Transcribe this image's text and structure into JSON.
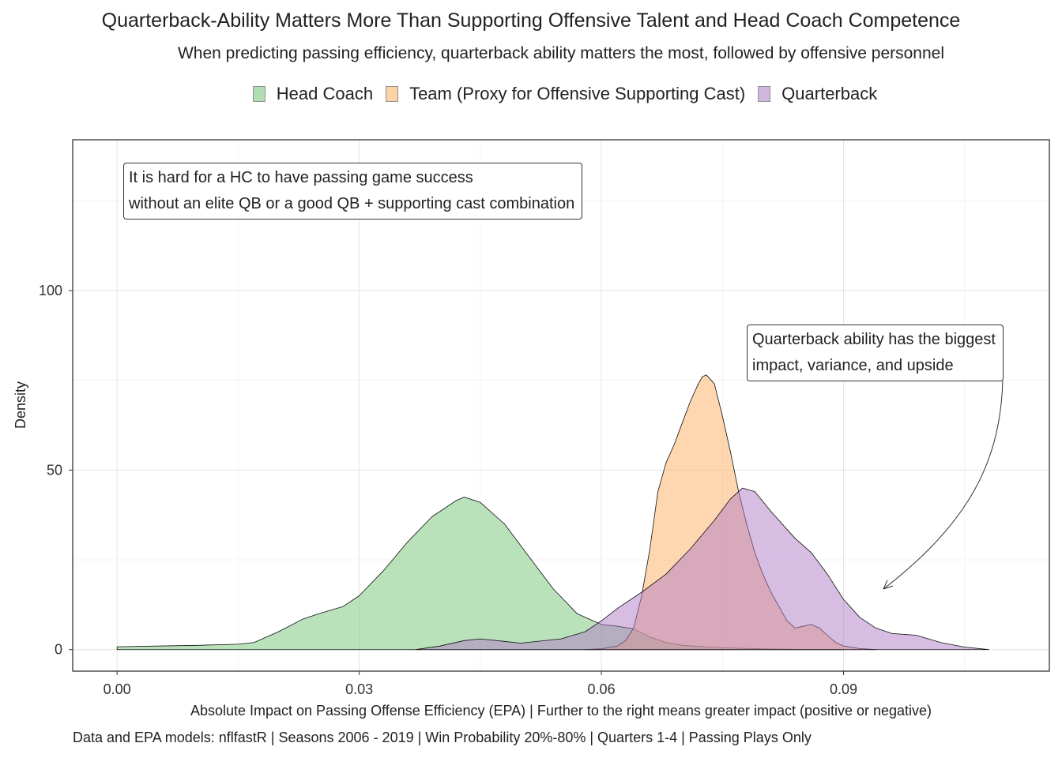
{
  "chart_data": {
    "type": "area",
    "title": "Quarterback-Ability Matters More Than Supporting Offensive Talent and Head Coach Competence",
    "subtitle": "When predicting passing efficiency, quarterback ability matters the most, followed by offensive personnel",
    "xlabel": "Absolute Impact on Passing Offense Efficiency (EPA) | Further to the right means greater impact (positive or negative)",
    "ylabel": "Density",
    "caption": "Data and EPA models: nflfastR | Seasons 2006 - 2019 | Win Probability 20%-80% | Quarters 1-4 | Passing Plays Only",
    "xlim": [
      -0.0055,
      0.1155
    ],
    "ylim": [
      -6,
      142
    ],
    "x_ticks": [
      0.0,
      0.03,
      0.06,
      0.09
    ],
    "x_tick_labels": [
      "0.00",
      "0.03",
      "0.06",
      "0.09"
    ],
    "y_ticks": [
      0,
      50,
      100
    ],
    "y_tick_labels": [
      "0",
      "50",
      "100"
    ],
    "grid": true,
    "legend_position": "top",
    "series": [
      {
        "name": "Head Coach",
        "color": "#74c476",
        "points": [
          [
            0.0,
            0.8
          ],
          [
            0.005,
            1
          ],
          [
            0.01,
            1.2
          ],
          [
            0.015,
            1.5
          ],
          [
            0.017,
            2
          ],
          [
            0.02,
            5
          ],
          [
            0.023,
            8.5
          ],
          [
            0.025,
            10
          ],
          [
            0.028,
            12
          ],
          [
            0.03,
            15
          ],
          [
            0.033,
            22
          ],
          [
            0.036,
            30
          ],
          [
            0.039,
            37
          ],
          [
            0.042,
            41.5
          ],
          [
            0.043,
            42.5
          ],
          [
            0.045,
            41
          ],
          [
            0.048,
            35
          ],
          [
            0.051,
            26
          ],
          [
            0.054,
            17
          ],
          [
            0.057,
            10
          ],
          [
            0.06,
            7
          ],
          [
            0.062,
            6.5
          ],
          [
            0.064,
            5.8
          ],
          [
            0.066,
            3.5
          ],
          [
            0.068,
            2
          ],
          [
            0.07,
            1.2
          ],
          [
            0.075,
            0.5
          ],
          [
            0.08,
            0.2
          ],
          [
            0.085,
            0.05
          ],
          [
            0.09,
            0
          ]
        ]
      },
      {
        "name": "Team (Proxy for Offensive Supporting Cast)",
        "color": "#fdae61",
        "points": [
          [
            0.058,
            0
          ],
          [
            0.06,
            0.2
          ],
          [
            0.062,
            1
          ],
          [
            0.063,
            2.5
          ],
          [
            0.064,
            6
          ],
          [
            0.065,
            15
          ],
          [
            0.066,
            28
          ],
          [
            0.067,
            44
          ],
          [
            0.068,
            52
          ],
          [
            0.069,
            57
          ],
          [
            0.07,
            63
          ],
          [
            0.071,
            69
          ],
          [
            0.072,
            74
          ],
          [
            0.0725,
            76
          ],
          [
            0.073,
            76.5
          ],
          [
            0.074,
            74
          ],
          [
            0.075,
            65
          ],
          [
            0.076,
            55
          ],
          [
            0.077,
            44
          ],
          [
            0.078,
            35
          ],
          [
            0.079,
            27
          ],
          [
            0.08,
            21
          ],
          [
            0.081,
            16
          ],
          [
            0.082,
            12
          ],
          [
            0.083,
            8
          ],
          [
            0.084,
            6
          ],
          [
            0.085,
            6.5
          ],
          [
            0.086,
            7
          ],
          [
            0.087,
            6
          ],
          [
            0.088,
            4
          ],
          [
            0.089,
            2
          ],
          [
            0.09,
            1
          ],
          [
            0.092,
            0.3
          ],
          [
            0.094,
            0
          ]
        ]
      },
      {
        "name": "Quarterback",
        "color": "#b07cc6",
        "points": [
          [
            0.037,
            0
          ],
          [
            0.04,
            1
          ],
          [
            0.043,
            2.5
          ],
          [
            0.045,
            3
          ],
          [
            0.048,
            2.3
          ],
          [
            0.05,
            1.8
          ],
          [
            0.055,
            3
          ],
          [
            0.058,
            5
          ],
          [
            0.06,
            8
          ],
          [
            0.062,
            11.5
          ],
          [
            0.065,
            16
          ],
          [
            0.068,
            21
          ],
          [
            0.071,
            28
          ],
          [
            0.074,
            36
          ],
          [
            0.076,
            42
          ],
          [
            0.0775,
            45
          ],
          [
            0.079,
            44
          ],
          [
            0.081,
            38.5
          ],
          [
            0.084,
            31
          ],
          [
            0.086,
            27
          ],
          [
            0.088,
            21
          ],
          [
            0.09,
            14
          ],
          [
            0.092,
            9
          ],
          [
            0.094,
            6
          ],
          [
            0.096,
            4.5
          ],
          [
            0.099,
            4
          ],
          [
            0.102,
            2
          ],
          [
            0.105,
            0.7
          ],
          [
            0.108,
            0
          ]
        ]
      }
    ],
    "annotations": [
      {
        "lines": [
          "It is hard for a HC to have passing game success",
          "without an elite QB or a good QB + supporting cast combination"
        ]
      },
      {
        "lines": [
          "Quarterback ability has the biggest",
          "impact, variance, and upside"
        ]
      }
    ]
  }
}
